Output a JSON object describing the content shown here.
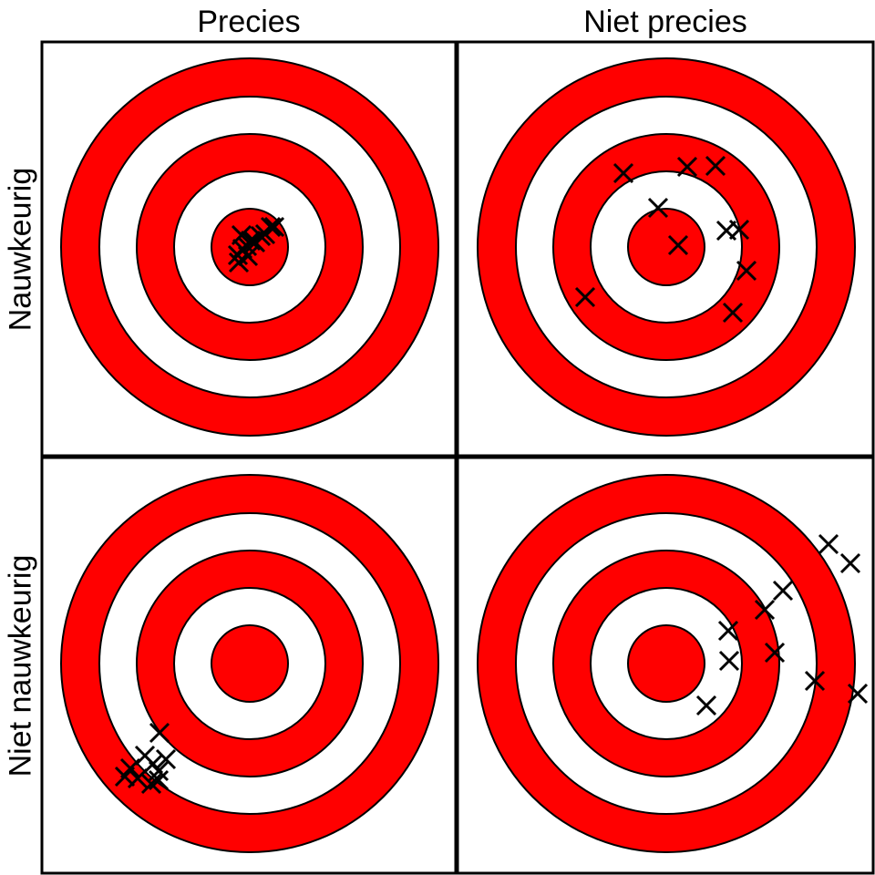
{
  "columns": [
    "Precies",
    "Niet precies"
  ],
  "rows": [
    "Nauwkeurig",
    "Niet nauwkeurig"
  ],
  "colors": {
    "ring_red": "#ff0000",
    "ring_white": "#ffffff",
    "outline": "#000000",
    "marker": "#000000"
  },
  "marker_icon": "x-mark-icon",
  "panels": [
    {
      "row": 0,
      "col": 0,
      "hits": [
        [
          -3,
          -1
        ],
        [
          -9,
          -13
        ],
        [
          6,
          -5
        ],
        [
          12,
          -12
        ],
        [
          17,
          -14
        ],
        [
          23,
          -22
        ],
        [
          27,
          -22
        ],
        [
          -8,
          2
        ],
        [
          -2,
          10
        ],
        [
          -12,
          17
        ],
        [
          -13,
          9
        ],
        [
          4,
          -7
        ],
        [
          1,
          -7
        ]
      ]
    },
    {
      "row": 0,
      "col": 1,
      "hits": [
        [
          -47,
          -81
        ],
        [
          23,
          -88
        ],
        [
          54,
          -89
        ],
        [
          -9,
          -43
        ],
        [
          13,
          -2
        ],
        [
          66,
          -18
        ],
        [
          80,
          -19
        ],
        [
          88,
          26
        ],
        [
          73,
          72
        ],
        [
          -89,
          55
        ]
      ]
    },
    {
      "row": 1,
      "col": 0,
      "hits": [
        [
          -99,
          76
        ],
        [
          -115,
          101
        ],
        [
          -131,
          115
        ],
        [
          -137,
          124
        ],
        [
          -123,
          126
        ],
        [
          -106,
          110
        ],
        [
          -92,
          105
        ],
        [
          -100,
          118
        ],
        [
          -100,
          128
        ],
        [
          -108,
          132
        ]
      ]
    },
    {
      "row": 1,
      "col": 1,
      "hits": [
        [
          178,
          -131
        ],
        [
          202,
          -110
        ],
        [
          128,
          -80
        ],
        [
          108,
          -59
        ],
        [
          68,
          -36
        ],
        [
          69,
          -3
        ],
        [
          119,
          -12
        ],
        [
          163,
          19
        ],
        [
          210,
          33
        ],
        [
          44,
          46
        ]
      ]
    }
  ]
}
